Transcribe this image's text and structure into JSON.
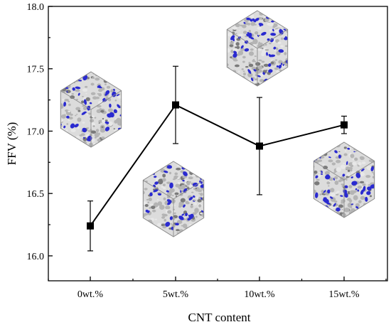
{
  "chart_data": {
    "type": "line",
    "title": "",
    "xlabel": "CNT content",
    "ylabel": "FFV (%)",
    "categories": [
      "0wt.%",
      "5wt.%",
      "10wt.%",
      "15wt.%"
    ],
    "y_ticks": [
      "16.0",
      "16.5",
      "17.0",
      "17.5",
      "18.0"
    ],
    "ylim": [
      15.8,
      18.0
    ],
    "grid": false,
    "legend": "none",
    "series": [
      {
        "values": [
          16.24,
          17.21,
          16.88,
          17.05
        ],
        "error": [
          0.2,
          0.31,
          0.39,
          0.07
        ],
        "marker": "square",
        "color": "#000000"
      }
    ],
    "insets": [
      {
        "category": "0wt.%",
        "description": "molecular-structure-cube"
      },
      {
        "category": "5wt.%",
        "description": "molecular-structure-cube"
      },
      {
        "category": "10wt.%",
        "description": "molecular-structure-cube"
      },
      {
        "category": "15wt.%",
        "description": "molecular-structure-cube"
      }
    ],
    "inset_colors": {
      "matrix": "#b4b4b4",
      "cnt": "#2a2ad0",
      "edge": "#8a8a8a"
    }
  }
}
